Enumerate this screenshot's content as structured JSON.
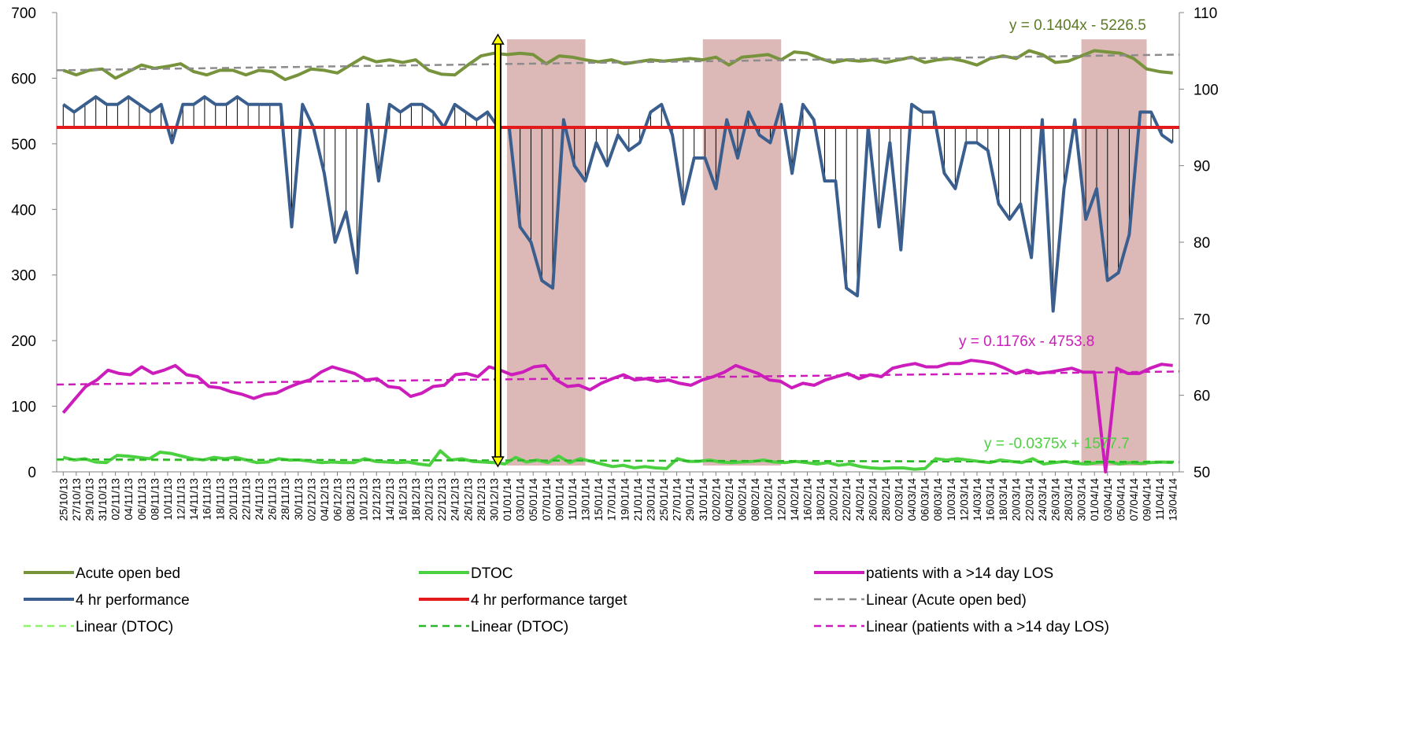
{
  "chart_data": {
    "type": "line",
    "left_axis": {
      "range": [
        0,
        700
      ],
      "ticks": [
        "0",
        "100",
        "200",
        "300",
        "400",
        "500",
        "600",
        "700"
      ]
    },
    "right_axis": {
      "range": [
        50,
        110
      ],
      "ticks": [
        "50",
        "60",
        "70",
        "80",
        "90",
        "100",
        "110"
      ]
    },
    "x_labels": [
      "25/10/13",
      "27/10/13",
      "29/10/13",
      "31/10/13",
      "02/11/13",
      "04/11/13",
      "06/11/13",
      "08/11/13",
      "10/11/13",
      "12/11/13",
      "14/11/13",
      "16/11/13",
      "18/11/13",
      "20/11/13",
      "22/11/13",
      "24/11/13",
      "26/11/13",
      "28/11/13",
      "30/11/13",
      "02/12/13",
      "04/12/13",
      "06/12/13",
      "08/12/13",
      "10/12/13",
      "12/12/13",
      "14/12/13",
      "16/12/13",
      "18/12/13",
      "20/12/13",
      "22/12/13",
      "24/12/13",
      "26/12/13",
      "28/12/13",
      "30/12/13",
      "01/01/14",
      "03/01/14",
      "05/01/14",
      "07/01/14",
      "09/01/14",
      "11/01/14",
      "13/01/14",
      "15/01/14",
      "17/01/14",
      "19/01/14",
      "21/01/14",
      "23/01/14",
      "25/01/14",
      "27/01/14",
      "29/01/14",
      "31/01/14",
      "02/02/14",
      "04/02/14",
      "06/02/14",
      "08/02/14",
      "10/02/14",
      "12/02/14",
      "14/02/14",
      "16/02/14",
      "18/02/14",
      "20/02/14",
      "22/02/14",
      "24/02/14",
      "26/02/14",
      "28/02/14",
      "02/03/14",
      "04/03/14",
      "06/03/14",
      "08/03/14",
      "10/03/14",
      "12/03/14",
      "14/03/14",
      "16/03/14",
      "18/03/14",
      "20/03/14",
      "22/03/14",
      "24/03/14",
      "26/03/14",
      "28/03/14",
      "30/03/14",
      "01/04/14",
      "03/04/14",
      "05/04/14",
      "07/04/14",
      "09/04/14",
      "11/04/14",
      "13/04/14"
    ],
    "shaded_periods": [
      [
        34.5,
        40.5
      ],
      [
        49.5,
        55.5
      ],
      [
        78.5,
        83.5
      ]
    ],
    "marker_x": 33.8,
    "series": [
      {
        "name": "Acute open bed",
        "axis": "left",
        "color": "#77933c",
        "style": "solid",
        "values": [
          612,
          605,
          612,
          614,
          600,
          610,
          620,
          615,
          618,
          622,
          610,
          605,
          612,
          612,
          605,
          612,
          610,
          598,
          605,
          614,
          612,
          608,
          620,
          632,
          625,
          628,
          624,
          628,
          612,
          606,
          605,
          620,
          634,
          638,
          636,
          638,
          636,
          622,
          634,
          632,
          628,
          625,
          628,
          622,
          625,
          628,
          626,
          628,
          630,
          628,
          632,
          620,
          632,
          634,
          636,
          628,
          640,
          638,
          630,
          624,
          628,
          626,
          628,
          624,
          628,
          632,
          624,
          628,
          630,
          626,
          620,
          630,
          634,
          630,
          642,
          636,
          624,
          626,
          634,
          642,
          640,
          638,
          630,
          614,
          610,
          608
        ]
      },
      {
        "name": "4 hr performance",
        "axis": "right",
        "color": "#3a5f8f",
        "style": "solid",
        "values": [
          98,
          97,
          98,
          99,
          98,
          98,
          99,
          98,
          97,
          98,
          93,
          98,
          98,
          99,
          98,
          98,
          99,
          98,
          98,
          98,
          98,
          82,
          98,
          95,
          89,
          80,
          84,
          76,
          98,
          88,
          98,
          97,
          98,
          98,
          97,
          95,
          98,
          97,
          96,
          97,
          95,
          95,
          82,
          80,
          75,
          74,
          96,
          90,
          88,
          93,
          90,
          94,
          92,
          93,
          97,
          98,
          94,
          85,
          91,
          91,
          87,
          96,
          91,
          97,
          94,
          93,
          98,
          89,
          98,
          96,
          88,
          88,
          74,
          73,
          95,
          82,
          93,
          79,
          98,
          97,
          97,
          89,
          87,
          93,
          93,
          92,
          85,
          83,
          85,
          78,
          96,
          71,
          87,
          96,
          83,
          87,
          75,
          76,
          81,
          97,
          97,
          94,
          93
        ]
      },
      {
        "name": "4 hr performance target",
        "axis": "right",
        "color": "#e31a1c",
        "style": "solid",
        "values": [
          95
        ]
      },
      {
        "name": "DTOC",
        "axis": "left",
        "color": "#4bd13f",
        "style": "solid",
        "values": [
          22,
          18,
          20,
          15,
          14,
          25,
          24,
          22,
          20,
          30,
          28,
          24,
          20,
          18,
          22,
          20,
          22,
          18,
          14,
          15,
          20,
          18,
          18,
          16,
          14,
          15,
          14,
          14,
          20,
          16,
          15,
          14,
          15,
          12,
          10,
          32,
          18,
          20,
          16,
          15,
          14,
          12,
          22,
          15,
          18,
          14,
          24,
          14,
          20,
          16,
          12,
          8,
          10,
          6,
          8,
          6,
          5,
          20,
          16,
          16,
          18,
          15,
          14,
          15,
          16,
          18,
          15,
          14,
          16,
          14,
          12,
          14,
          10,
          12,
          8,
          6,
          5,
          6,
          6,
          4,
          5,
          20,
          18,
          20,
          18,
          16,
          14,
          18,
          16,
          14,
          20,
          12,
          14,
          16,
          13,
          12,
          14,
          16,
          12,
          14,
          13,
          14,
          15,
          14
        ]
      },
      {
        "name": "patients with a >14 day LOS",
        "axis": "left",
        "color": "#cc1dbc",
        "style": "solid",
        "values": [
          90,
          110,
          130,
          140,
          155,
          150,
          148,
          160,
          150,
          155,
          162,
          148,
          145,
          130,
          128,
          122,
          118,
          112,
          118,
          120,
          128,
          135,
          140,
          152,
          160,
          155,
          150,
          140,
          142,
          130,
          128,
          115,
          120,
          130,
          132,
          148,
          150,
          145,
          160,
          155,
          148,
          152,
          160,
          162,
          140,
          130,
          132,
          125,
          135,
          142,
          148,
          140,
          142,
          138,
          140,
          135,
          132,
          140,
          145,
          152,
          162,
          156,
          150,
          140,
          138,
          128,
          135,
          132,
          140,
          145,
          150,
          142,
          148,
          145,
          158,
          162,
          165,
          160,
          160,
          165,
          165,
          170,
          168,
          165,
          158,
          150,
          155,
          150,
          152,
          155,
          158,
          152,
          152,
          0,
          158,
          150,
          150,
          158,
          164,
          162
        ]
      },
      {
        "name": "Linear (Acute open bed)",
        "axis": "left",
        "color": "#8c8c8c",
        "style": "dashed",
        "values": [
          612,
          636
        ]
      },
      {
        "name": "Linear (DTOC)",
        "axis": "left",
        "color": "#8ef26b",
        "style": "dashed",
        "values": [
          18,
          16
        ]
      },
      {
        "name": "Linear (DTOC)",
        "axis": "left",
        "color": "#2bb52b",
        "style": "dashed",
        "values": [
          19,
          15
        ]
      },
      {
        "name": "Linear (patients with a >14 day LOS)",
        "axis": "left",
        "color": "#cc1dbc",
        "style": "dashed",
        "values": [
          133,
          153
        ]
      }
    ],
    "annotations": [
      {
        "text": "y = 0.1404x - 5226.5",
        "color": "#5c7a26"
      },
      {
        "text": "y = 0.1176x - 4753.8",
        "color": "#cc1dbc"
      },
      {
        "text": "y = -0.0375x + 1577.7",
        "color": "#4bd13f"
      }
    ],
    "legend": {
      "position": "bottom",
      "items": [
        {
          "label": "Acute open bed",
          "color": "#77933c",
          "style": "solid"
        },
        {
          "label": "DTOC",
          "color": "#4bd13f",
          "style": "solid"
        },
        {
          "label": "patients with a >14 day LOS",
          "color": "#cc1dbc",
          "style": "solid"
        },
        {
          "label": "4 hr performance",
          "color": "#3a5f8f",
          "style": "solid"
        },
        {
          "label": "4 hr performance target",
          "color": "#e31a1c",
          "style": "solid"
        },
        {
          "label": "Linear (Acute open bed)",
          "color": "#8c8c8c",
          "style": "dashed"
        },
        {
          "label": "Linear (DTOC)",
          "color": "#8ef26b",
          "style": "dashed"
        },
        {
          "label": "Linear (DTOC)",
          "color": "#2bb52b",
          "style": "dashed"
        },
        {
          "label": "Linear (patients with a >14 day LOS)",
          "color": "#cc1dbc",
          "style": "dashed"
        }
      ]
    },
    "colors": {
      "shade": "#c9928f",
      "marker": "#ffff00",
      "grid": "none"
    }
  }
}
